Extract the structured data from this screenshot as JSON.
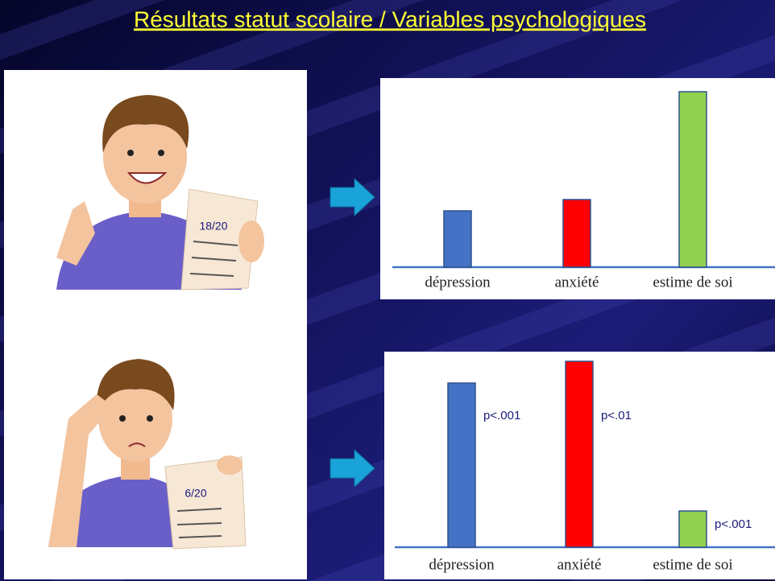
{
  "title": "Résultats statut scolaire / Variables psychologiques",
  "illustrations": [
    {
      "label": "18/20"
    },
    {
      "label": "6/20"
    }
  ],
  "chart_data": [
    {
      "type": "bar",
      "categories": [
        "dépression",
        "anxiété",
        "estime de soi"
      ],
      "values": [
        70,
        84,
        218
      ],
      "colors": [
        "#4472c4",
        "#ff0000",
        "#92d050"
      ]
    },
    {
      "type": "bar",
      "categories": [
        "dépression",
        "anxiété",
        "estime de soi"
      ],
      "values": [
        204,
        231,
        45
      ],
      "colors": [
        "#4472c4",
        "#ff0000",
        "#92d050"
      ],
      "annotations": [
        "p<.001",
        "p<.01",
        "p<.001"
      ]
    }
  ]
}
